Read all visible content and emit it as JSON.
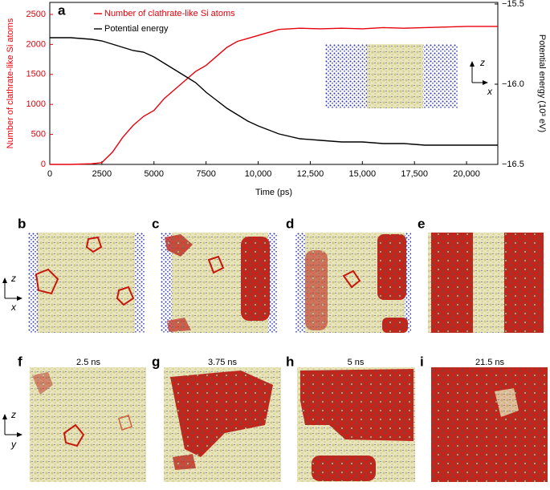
{
  "chart_data": {
    "type": "line",
    "panel_label": "a",
    "x_label": "Time (ps)",
    "y_label": "Number of clathrate-like Si atoms",
    "y2_label": "Potential energy (10³ eV)",
    "xlim": [
      0,
      21500
    ],
    "ylim": [
      0,
      2700
    ],
    "y2lim": [
      -16.5,
      -15.49
    ],
    "xticks": [
      0,
      2500,
      5000,
      7500,
      {
        "value": 10000,
        "label": "10,000"
      },
      {
        "value": 12500,
        "label": "12,500"
      },
      {
        "value": 15000,
        "label": "15,000"
      },
      {
        "value": 17500,
        "label": "17,500"
      },
      {
        "value": 20000,
        "label": "20,000"
      }
    ],
    "yticks": [
      0,
      500,
      1000,
      1500,
      2000,
      2500
    ],
    "y2ticks": [
      {
        "value": -16.5,
        "label": "−16.5"
      },
      {
        "value": -16.0,
        "label": "−16.0"
      },
      {
        "value": -15.5,
        "label": "−15.5"
      }
    ],
    "x": [
      0,
      1000,
      2000,
      2500,
      3000,
      3500,
      4000,
      4500,
      5000,
      5500,
      6000,
      6500,
      7000,
      7500,
      8000,
      8500,
      9000,
      9500,
      10000,
      11000,
      12000,
      13000,
      14000,
      15000,
      16000,
      17000,
      18000,
      19000,
      20000,
      21500
    ],
    "series": [
      {
        "name": "Number of clathrate-like Si atoms",
        "color": "#e8000b",
        "axis": "y",
        "values": [
          0,
          0,
          10,
          30,
          200,
          450,
          650,
          800,
          900,
          1100,
          1250,
          1400,
          1550,
          1650,
          1800,
          1950,
          2050,
          2100,
          2150,
          2250,
          2270,
          2260,
          2270,
          2260,
          2280,
          2270,
          2280,
          2290,
          2300,
          2300
        ]
      },
      {
        "name": "Potential energy",
        "color": "#000000",
        "axis": "y2",
        "values": [
          -15.71,
          -15.71,
          -15.72,
          -15.73,
          -15.75,
          -15.77,
          -15.79,
          -15.8,
          -15.83,
          -15.87,
          -15.91,
          -15.95,
          -15.99,
          -16.05,
          -16.1,
          -16.15,
          -16.19,
          -16.23,
          -16.26,
          -16.31,
          -16.34,
          -16.35,
          -16.36,
          -16.36,
          -16.37,
          -16.37,
          -16.38,
          -16.38,
          -16.38,
          -16.38
        ]
      }
    ],
    "inset_axes": {
      "vertical": "z",
      "horizontal": "x"
    }
  },
  "snapshots": {
    "row1": [
      {
        "label": "b"
      },
      {
        "label": "c"
      },
      {
        "label": "d"
      },
      {
        "label": "e"
      }
    ],
    "row1_axes": {
      "vertical": "z",
      "horizontal": "x"
    },
    "row2": [
      {
        "label": "f",
        "time": "2.5 ns"
      },
      {
        "label": "g",
        "time": "3.75 ns"
      },
      {
        "label": "h",
        "time": "5 ns"
      },
      {
        "label": "i",
        "time": "21.5 ns"
      }
    ],
    "row2_axes": {
      "vertical": "z",
      "horizontal": "y"
    }
  }
}
